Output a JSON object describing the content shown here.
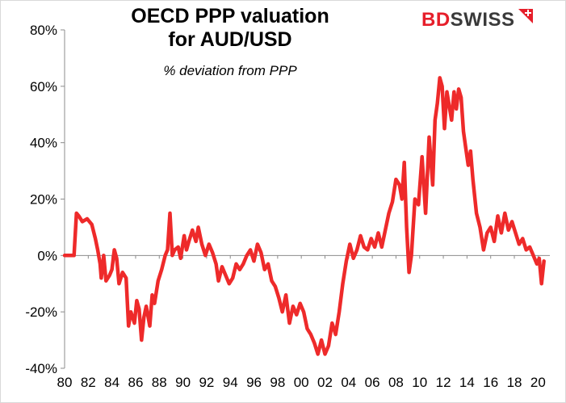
{
  "header": {
    "title_line1": "OECD PPP valuation",
    "title_line2": "for AUD/USD",
    "subtitle": "% deviation from PPP"
  },
  "logo": {
    "part1": "BD",
    "part2": "SWISS",
    "mark_icon": "plus-triangle-icon",
    "brand_red": "#e61e2a",
    "brand_dark": "#3a3a3a"
  },
  "chart_data": {
    "type": "line",
    "title": "OECD PPP valuation for AUD/USD",
    "subtitle": "% deviation from PPP",
    "xlabel": "",
    "ylabel": "",
    "xlim": [
      1980,
      2021
    ],
    "ylim": [
      -40,
      80
    ],
    "x_ticks": [
      1980,
      1982,
      1984,
      1986,
      1988,
      1990,
      1992,
      1994,
      1996,
      1998,
      2000,
      2002,
      2004,
      2006,
      2008,
      2010,
      2012,
      2014,
      2016,
      2018,
      2020
    ],
    "x_tick_labels": [
      "80",
      "82",
      "84",
      "86",
      "88",
      "90",
      "92",
      "94",
      "96",
      "98",
      "00",
      "02",
      "04",
      "06",
      "08",
      "10",
      "12",
      "14",
      "16",
      "18",
      "20"
    ],
    "y_ticks": [
      -40,
      -20,
      0,
      20,
      40,
      60,
      80
    ],
    "y_tick_labels": [
      "-40%",
      "-20%",
      "0%",
      "20%",
      "40%",
      "60%",
      "80%"
    ],
    "grid": false,
    "line_color": "#ee2a2a",
    "series": [
      {
        "name": "",
        "x": [
          1980.0,
          1980.8,
          1981.0,
          1981.2,
          1981.5,
          1981.9,
          1982.3,
          1982.6,
          1982.8,
          1983.0,
          1983.1,
          1983.3,
          1983.5,
          1983.8,
          1984.0,
          1984.2,
          1984.4,
          1984.6,
          1984.9,
          1985.2,
          1985.4,
          1985.6,
          1985.9,
          1986.1,
          1986.3,
          1986.5,
          1986.7,
          1986.9,
          1987.2,
          1987.4,
          1987.6,
          1987.9,
          1988.2,
          1988.5,
          1988.7,
          1988.9,
          1989.1,
          1989.3,
          1989.6,
          1989.8,
          1990.1,
          1990.3,
          1990.5,
          1990.8,
          1991.1,
          1991.3,
          1991.6,
          1991.9,
          1992.2,
          1992.5,
          1992.8,
          1993.0,
          1993.3,
          1993.6,
          1993.9,
          1994.2,
          1994.5,
          1994.8,
          1995.1,
          1995.4,
          1995.7,
          1996.0,
          1996.3,
          1996.6,
          1996.9,
          1997.2,
          1997.5,
          1997.8,
          1998.1,
          1998.4,
          1998.7,
          1999.0,
          1999.3,
          1999.6,
          1999.9,
          2000.2,
          2000.5,
          2000.8,
          2001.1,
          2001.4,
          2001.7,
          2002.0,
          2002.3,
          2002.6,
          2002.9,
          2003.2,
          2003.5,
          2003.8,
          2004.1,
          2004.4,
          2004.7,
          2005.0,
          2005.3,
          2005.6,
          2005.9,
          2006.2,
          2006.5,
          2006.8,
          2007.1,
          2007.4,
          2007.7,
          2008.0,
          2008.3,
          2008.5,
          2008.7,
          2008.9,
          2009.1,
          2009.3,
          2009.6,
          2009.9,
          2010.2,
          2010.5,
          2010.8,
          2011.1,
          2011.3,
          2011.5,
          2011.7,
          2011.9,
          2012.1,
          2012.3,
          2012.5,
          2012.7,
          2012.9,
          2013.1,
          2013.3,
          2013.5,
          2013.7,
          2013.9,
          2014.1,
          2014.3,
          2014.5,
          2014.8,
          2015.1,
          2015.4,
          2015.7,
          2016.0,
          2016.3,
          2016.6,
          2016.9,
          2017.2,
          2017.5,
          2017.8,
          2018.1,
          2018.4,
          2018.7,
          2019.0,
          2019.3,
          2019.6,
          2019.9,
          2020.1,
          2020.3,
          2020.5
        ],
        "y": [
          0,
          0,
          15,
          14,
          12,
          13,
          11,
          6,
          2,
          -3,
          -8,
          0,
          -9,
          -7,
          -5,
          2,
          -1,
          -10,
          -6,
          -8,
          -25,
          -20,
          -24,
          -16,
          -19,
          -30,
          -22,
          -18,
          -25,
          -14,
          -17,
          -9,
          -5,
          0,
          2,
          15,
          0,
          2,
          3,
          -1,
          7,
          2,
          5,
          9,
          5,
          10,
          4,
          0,
          4,
          1,
          -3,
          -9,
          -4,
          -7,
          -10,
          -8,
          -3,
          -5,
          -3,
          0,
          2,
          -2,
          4,
          1,
          -5,
          -3,
          -9,
          -11,
          -15,
          -20,
          -14,
          -24,
          -18,
          -21,
          -17,
          -20,
          -26,
          -28,
          -31,
          -35,
          -30,
          -35,
          -32,
          -24,
          -28,
          -20,
          -10,
          -2,
          4,
          -1,
          2,
          7,
          3,
          2,
          6,
          3,
          8,
          3,
          9,
          15,
          19,
          27,
          25,
          20,
          33,
          10,
          -6,
          0,
          20,
          18,
          35,
          15,
          42,
          25,
          48,
          54,
          63,
          60,
          45,
          58,
          53,
          48,
          58,
          52,
          59,
          56,
          44,
          38,
          32,
          37,
          27,
          15,
          10,
          2,
          8,
          10,
          5,
          14,
          8,
          15,
          9,
          12,
          8,
          4,
          6,
          2,
          3,
          0,
          -3,
          -1,
          -10,
          -2
        ]
      }
    ]
  }
}
